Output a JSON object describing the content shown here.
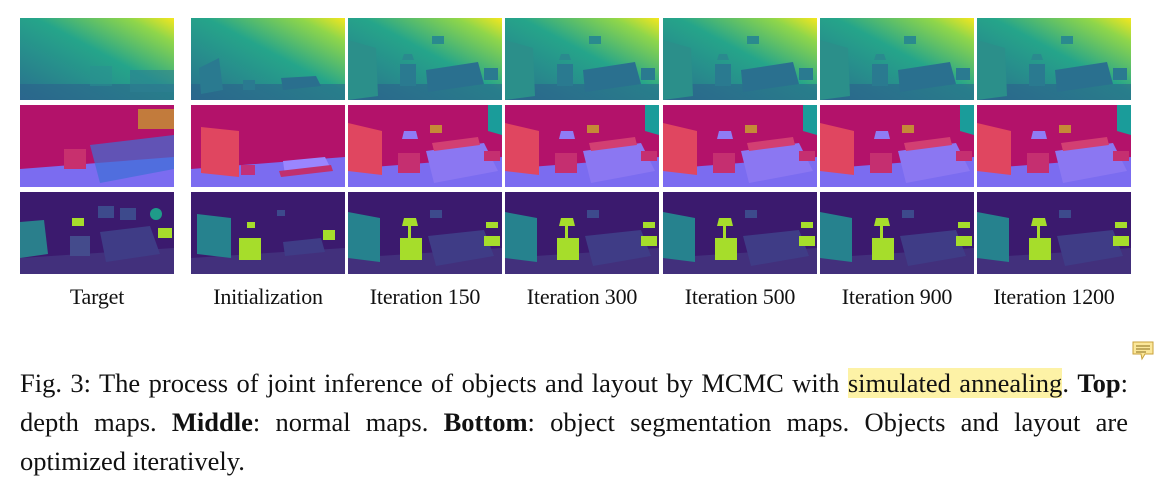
{
  "figure": {
    "columns": [
      {
        "label": "Target"
      },
      {
        "label": "Initialization"
      },
      {
        "label": "Iteration 150"
      },
      {
        "label": "Iteration 300"
      },
      {
        "label": "Iteration 500"
      },
      {
        "label": "Iteration 900"
      },
      {
        "label": "Iteration 1200"
      }
    ],
    "rows": [
      "depth",
      "normal",
      "segmentation"
    ]
  },
  "caption": {
    "prefix": "Fig. 3: The process of joint inference of objects and layout by MCMC with ",
    "highlight": "simulated annealing",
    "after_highlight": ". ",
    "top_label": "Top",
    "top_text": ": depth maps. ",
    "middle_label": "Middle",
    "middle_text": ": normal maps. ",
    "bottom_label": "Bottom",
    "bottom_text": ": object segmentation maps. Objects and layout are optimized iteratively."
  },
  "colors": {
    "highlight": "#fdf2a6",
    "depth_bg": "#2fa88a",
    "normal_bg": "#b3126a",
    "normal_floor": "#7b6cf0",
    "seg_bg": "#3b1a6e",
    "seg_object": "#a6dd2b"
  },
  "icons": {
    "annotation": "comment-note-icon"
  }
}
